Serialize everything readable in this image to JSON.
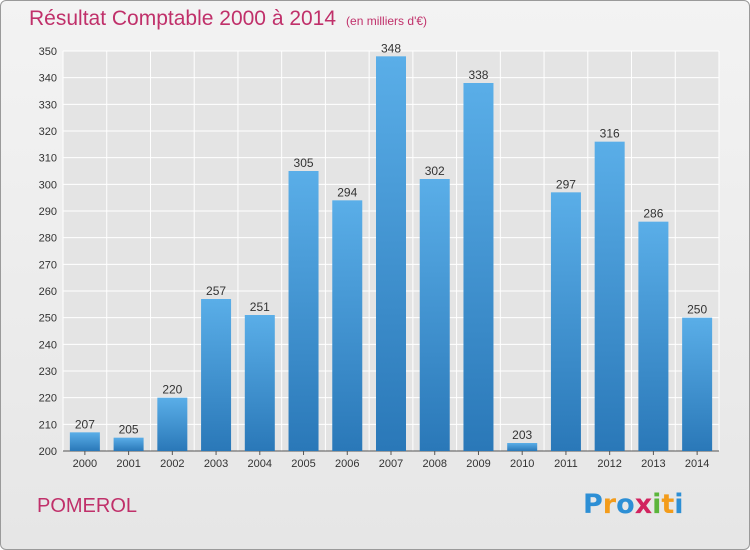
{
  "header": {
    "title": "Résultat Comptable 2000 à 2014",
    "subtitle": "(en milliers d'€)"
  },
  "footer": {
    "commune": "POMEROL",
    "logo_letters": [
      "P",
      "r",
      "o",
      "x",
      "i",
      "t",
      "i"
    ],
    "logo_colors": [
      "#2d8fd5",
      "#f39c1b",
      "#2d8fd5",
      "#d2235f",
      "#5bb53b",
      "#f39c1b",
      "#2d8fd5"
    ]
  },
  "colors": {
    "bar_top": "#5aaee8",
    "bar_bottom": "#2a78b8",
    "title": "#c0306a",
    "grid": "#ffffff",
    "text": "#333333"
  },
  "chart_data": {
    "type": "bar",
    "title": "Résultat Comptable 2000 à 2014",
    "subtitle": "(en milliers d'€)",
    "xlabel": "",
    "ylabel": "",
    "categories": [
      "2000",
      "2001",
      "2002",
      "2003",
      "2004",
      "2005",
      "2006",
      "2007",
      "2008",
      "2009",
      "2010",
      "2011",
      "2012",
      "2013",
      "2014"
    ],
    "values": [
      207,
      205,
      220,
      257,
      251,
      305,
      294,
      348,
      302,
      338,
      203,
      297,
      316,
      286,
      250
    ],
    "ylim": [
      200,
      350
    ],
    "yticks": [
      200,
      210,
      220,
      230,
      240,
      250,
      260,
      270,
      280,
      290,
      300,
      310,
      320,
      330,
      340,
      350
    ],
    "grid": true
  }
}
